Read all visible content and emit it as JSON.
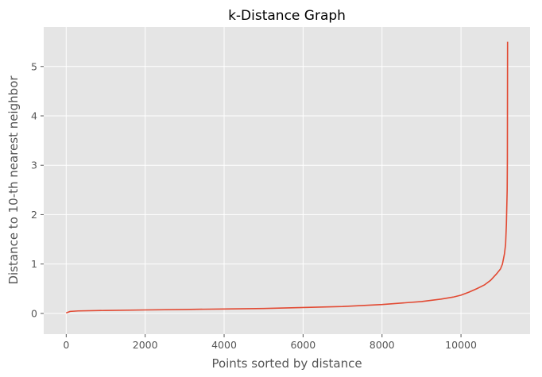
{
  "chart_data": {
    "type": "line",
    "title": "k-Distance Graph",
    "xlabel": "Points sorted by distance",
    "ylabel": "Distance to 10-th nearest neighbor",
    "xlim": [
      -570,
      11750
    ],
    "ylim": [
      -0.42,
      5.8
    ],
    "xticks": [
      0,
      2000,
      4000,
      6000,
      8000,
      10000
    ],
    "yticks": [
      0,
      1,
      2,
      3,
      4,
      5
    ],
    "grid": true,
    "background": "#e5e5e5",
    "grid_color": "#ffffff",
    "series": [
      {
        "color": "#e24a33",
        "x": [
          0,
          100,
          300,
          1000,
          2000,
          3000,
          4000,
          5000,
          6000,
          6500,
          7000,
          7500,
          8000,
          8500,
          9000,
          9500,
          9800,
          10000,
          10200,
          10400,
          10600,
          10750,
          10900,
          11000,
          11050,
          11100,
          11130,
          11150,
          11170,
          11175,
          11180
        ],
        "y": [
          0.01,
          0.04,
          0.05,
          0.06,
          0.07,
          0.08,
          0.09,
          0.1,
          0.12,
          0.13,
          0.14,
          0.16,
          0.18,
          0.21,
          0.24,
          0.29,
          0.33,
          0.37,
          0.43,
          0.5,
          0.58,
          0.67,
          0.8,
          0.9,
          1.0,
          1.2,
          1.4,
          1.8,
          2.5,
          3.1,
          5.5
        ]
      }
    ]
  }
}
